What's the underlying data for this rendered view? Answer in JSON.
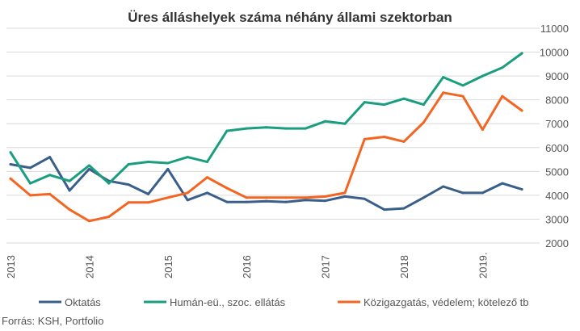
{
  "chart_data": {
    "type": "line",
    "title": "Üres álláshelyek száma néhány állami szektorban",
    "xlabel": "",
    "ylabel": "",
    "x": [
      "2013 Q1",
      "2013 Q2",
      "2013 Q3",
      "2013 Q4",
      "2014 Q1",
      "2014 Q2",
      "2014 Q3",
      "2014 Q4",
      "2015 Q1",
      "2015 Q2",
      "2015 Q3",
      "2015 Q4",
      "2016 Q1",
      "2016 Q2",
      "2016 Q3",
      "2016 Q4",
      "2017 Q1",
      "2017 Q2",
      "2017 Q3",
      "2017 Q4",
      "2018 Q1",
      "2018 Q2",
      "2018 Q3",
      "2018 Q4",
      "2019 Q1",
      "2019 Q2",
      "2019 Q3"
    ],
    "x_tick_labels": [
      "2013",
      "2014",
      "2015",
      "2016",
      "2017",
      "2018",
      "2019."
    ],
    "ylim": [
      2000,
      11000
    ],
    "y_ticks": [
      2000,
      3000,
      4000,
      5000,
      6000,
      7000,
      8000,
      9000,
      10000,
      11000
    ],
    "y_axis_side": "right",
    "grid": true,
    "legend_position": "bottom",
    "series": [
      {
        "name": "Oktatás",
        "color": "#3a5f8a",
        "values": [
          5300,
          5150,
          5600,
          4200,
          5100,
          4600,
          4450,
          4050,
          5100,
          3800,
          4100,
          3720,
          3720,
          3750,
          3720,
          3800,
          3770,
          3950,
          3850,
          3400,
          3450,
          3900,
          4370,
          4100,
          4100,
          4500,
          4250
        ]
      },
      {
        "name": "Humán-eü., szoc. ellátás",
        "color": "#1a9e7f",
        "values": [
          5800,
          4500,
          4850,
          4600,
          5250,
          4500,
          5300,
          5400,
          5350,
          5600,
          5400,
          6700,
          6800,
          6850,
          6800,
          6800,
          7100,
          7000,
          7900,
          7800,
          8050,
          7800,
          8950,
          8600,
          9000,
          9350,
          9950
        ]
      },
      {
        "name": "Közigazgatás, védelem; kötelező tb",
        "color": "#f26522",
        "values": [
          4700,
          4000,
          4050,
          3400,
          2920,
          3100,
          3700,
          3700,
          3900,
          4100,
          4750,
          4300,
          3900,
          3900,
          3900,
          3900,
          3950,
          4100,
          6350,
          6450,
          6250,
          7050,
          8300,
          8150,
          6750,
          8150,
          7550
        ]
      }
    ],
    "source": "Forrás: KSH, Portfolio"
  }
}
